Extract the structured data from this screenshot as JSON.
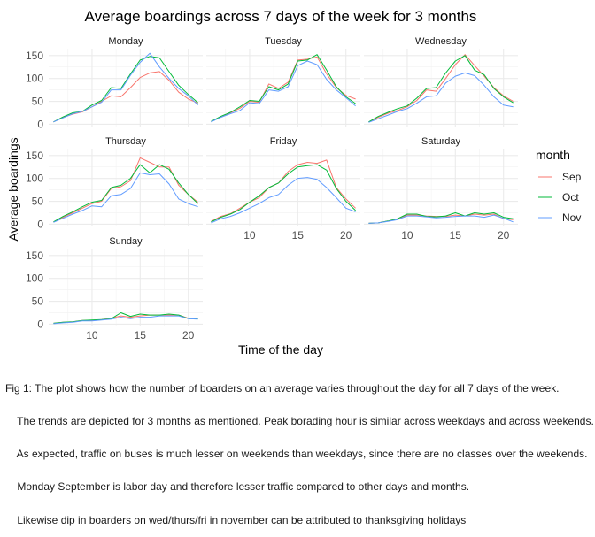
{
  "chart_data": {
    "type": "line",
    "title": "Average boardings across 7 days of the week for 3 months",
    "xlabel": "Time of the day",
    "ylabel": "Average boardings",
    "x_ticks": [
      10,
      15,
      20
    ],
    "y_ticks": [
      0,
      50,
      100,
      150
    ],
    "xlim": [
      5.5,
      21.5
    ],
    "ylim": [
      -5,
      165
    ],
    "legend": {
      "title": "month",
      "placement": "right",
      "entries": [
        {
          "name": "Sep",
          "color": "#F8766D"
        },
        {
          "name": "Oct",
          "color": "#00BA38"
        },
        {
          "name": "Nov",
          "color": "#619CFF"
        }
      ]
    },
    "grid": true,
    "x": [
      6,
      7,
      8,
      9,
      10,
      11,
      12,
      13,
      14,
      15,
      16,
      17,
      18,
      19,
      20,
      21
    ],
    "facets": [
      {
        "name": "Monday",
        "series": [
          {
            "name": "Sep",
            "values": [
              5,
              15,
              22,
              27,
              38,
              50,
              62,
              60,
              80,
              102,
              112,
              115,
              96,
              70,
              55,
              46
            ]
          },
          {
            "name": "Oct",
            "values": [
              5,
              16,
              25,
              28,
              42,
              52,
              80,
              78,
              110,
              140,
              148,
              145,
              115,
              85,
              65,
              47
            ]
          },
          {
            "name": "Nov",
            "values": [
              5,
              14,
              23,
              28,
              38,
              48,
              75,
              75,
              107,
              135,
              155,
              125,
              100,
              78,
              62,
              42
            ]
          }
        ]
      },
      {
        "name": "Tuesday",
        "series": [
          {
            "name": "Sep",
            "values": [
              6,
              15,
              25,
              35,
              50,
              48,
              88,
              78,
              92,
              140,
              142,
              147,
              110,
              80,
              63,
              55
            ]
          },
          {
            "name": "Oct",
            "values": [
              6,
              17,
              26,
              38,
              52,
              50,
              82,
              75,
              88,
              138,
              140,
              152,
              118,
              82,
              60,
              45
            ]
          },
          {
            "name": "Nov",
            "values": [
              5,
              15,
              23,
              30,
              47,
              45,
              75,
              72,
              82,
              128,
              138,
              130,
              98,
              75,
              58,
              40
            ]
          }
        ]
      },
      {
        "name": "Wednesday",
        "series": [
          {
            "name": "Sep",
            "values": [
              5,
              15,
              24,
              30,
              38,
              52,
              75,
              72,
              100,
              130,
              152,
              128,
              105,
              80,
              62,
              50
            ]
          },
          {
            "name": "Oct",
            "values": [
              5,
              17,
              26,
              34,
              40,
              57,
              78,
              80,
              112,
              138,
              150,
              118,
              108,
              78,
              60,
              47
            ]
          },
          {
            "name": "Nov",
            "values": [
              4,
              12,
              20,
              28,
              34,
              46,
              60,
              62,
              90,
              105,
              112,
              106,
              85,
              60,
              42,
              38
            ]
          }
        ]
      },
      {
        "name": "Thursday",
        "series": [
          {
            "name": "Sep",
            "values": [
              5,
              15,
              25,
              35,
              45,
              50,
              78,
              82,
              95,
              145,
              135,
              125,
              125,
              85,
              65,
              48
            ]
          },
          {
            "name": "Oct",
            "values": [
              5,
              17,
              27,
              38,
              48,
              52,
              80,
              85,
              100,
              130,
              112,
              130,
              120,
              90,
              65,
              45
            ]
          },
          {
            "name": "Nov",
            "values": [
              4,
              13,
              22,
              30,
              40,
              38,
              62,
              65,
              78,
              112,
              108,
              110,
              88,
              55,
              45,
              38
            ]
          }
        ]
      },
      {
        "name": "Friday",
        "series": [
          {
            "name": "Sep",
            "values": [
              6,
              17,
              23,
              35,
              48,
              58,
              80,
              90,
              115,
              130,
              135,
              133,
              140,
              80,
              55,
              35
            ]
          },
          {
            "name": "Oct",
            "values": [
              5,
              15,
              22,
              32,
              48,
              62,
              80,
              90,
              110,
              125,
              128,
              130,
              118,
              78,
              50,
              30
            ]
          },
          {
            "name": "Nov",
            "values": [
              3,
              12,
              17,
              25,
              35,
              45,
              58,
              65,
              85,
              100,
              102,
              98,
              80,
              58,
              35,
              27
            ]
          }
        ]
      },
      {
        "name": "Saturday",
        "series": [
          {
            "name": "Sep",
            "values": [
              2,
              3,
              7,
              12,
              20,
              20,
              18,
              17,
              17,
              20,
              18,
              22,
              20,
              22,
              12,
              10
            ]
          },
          {
            "name": "Oct",
            "values": [
              2,
              3,
              7,
              12,
              22,
              22,
              17,
              16,
              18,
              25,
              18,
              25,
              22,
              25,
              15,
              12
            ]
          },
          {
            "name": "Nov",
            "values": [
              2,
              3,
              6,
              10,
              18,
              18,
              16,
              14,
              15,
              17,
              18,
              18,
              15,
              20,
              13,
              5
            ]
          }
        ]
      },
      {
        "name": "Sunday",
        "series": [
          {
            "name": "Sep",
            "values": [
              2,
              4,
              5,
              8,
              8,
              10,
              13,
              18,
              15,
              18,
              20,
              20,
              20,
              20,
              13,
              12
            ]
          },
          {
            "name": "Oct",
            "values": [
              2,
              4,
              5,
              8,
              9,
              10,
              12,
              25,
              17,
              22,
              20,
              20,
              22,
              20,
              12,
              12
            ]
          },
          {
            "name": "Nov",
            "values": [
              1,
              3,
              4,
              7,
              7,
              9,
              11,
              15,
              12,
              15,
              15,
              18,
              18,
              18,
              12,
              11
            ]
          }
        ]
      }
    ]
  },
  "caption": [
    "Fig 1: The plot shows how the number of boarders on an average varies throughout the day for all 7 days of the week.",
    "    The trends are depicted for 3 months as mentioned. Peak borading hour is similar across weekdays and across weekends.",
    "    As expected, traffic on buses is much lesser on weekends than weekdays, since there are no classes over the weekends.",
    "    Monday September is labor day and therefore lesser traffic compared to other days and months.",
    "    Likewise dip in boarders on wed/thurs/fri in november can be attributed to thanksgiving holidays"
  ]
}
